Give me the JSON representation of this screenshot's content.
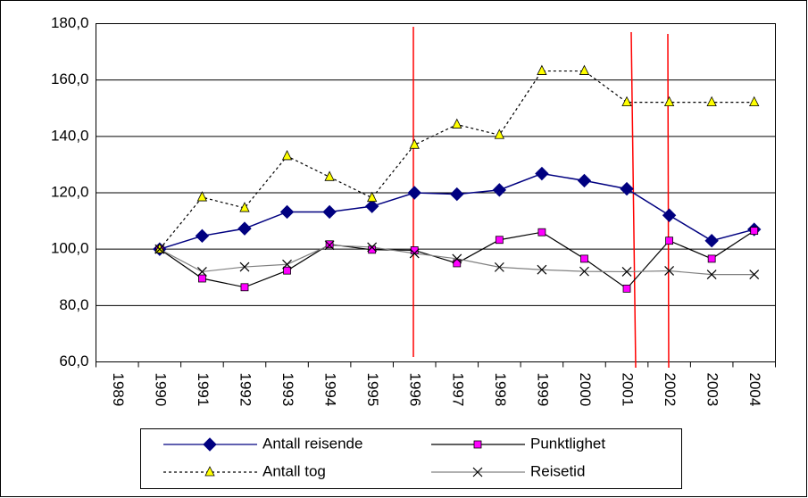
{
  "chart_data": {
    "type": "line",
    "categories": [
      "1989",
      "1990",
      "1991",
      "1992",
      "1993",
      "1994",
      "1995",
      "1996",
      "1997",
      "1998",
      "1999",
      "2000",
      "2001",
      "2002",
      "2003",
      "2004"
    ],
    "series": [
      {
        "name": "Antall reisende",
        "color": "#000080",
        "marker": "diamond",
        "line_style": "solid",
        "values": [
          null,
          100,
          104.7,
          107.3,
          113.2,
          113.2,
          115.2,
          120,
          119.5,
          121,
          126.8,
          124.3,
          121.4,
          112,
          103,
          107
        ]
      },
      {
        "name": "Punktlighet",
        "color": "#000000",
        "marker_color": "#ff00ff",
        "marker": "square",
        "line_style": "solid",
        "values": [
          null,
          100,
          89.6,
          86.5,
          92.4,
          101.7,
          99.8,
          99.6,
          95,
          103.3,
          106,
          96.6,
          86,
          103,
          96.6,
          106.5
        ]
      },
      {
        "name": "Antall tog",
        "color": "#000000",
        "marker_color": "#ffff00",
        "marker": "triangle",
        "line_style": "dotted",
        "values": [
          null,
          100,
          118.4,
          114.6,
          133,
          125.6,
          118.2,
          137,
          144.2,
          140.5,
          163.2,
          163.2,
          152.1,
          152.1,
          152.1,
          152.1
        ]
      },
      {
        "name": "Reisetid",
        "color": "#808080",
        "marker_color": "#000000",
        "marker": "x",
        "line_style": "solid",
        "values": [
          null,
          100,
          92,
          93.7,
          94.6,
          101.4,
          100.7,
          98.5,
          96.6,
          93.6,
          92.7,
          92.1,
          92,
          92.3,
          91,
          91
        ]
      }
    ],
    "ylim": [
      60,
      180
    ],
    "yticks": [
      {
        "value": 60,
        "label": "60,0"
      },
      {
        "value": 80,
        "label": "80,0"
      },
      {
        "value": 100,
        "label": "100,0"
      },
      {
        "value": 120,
        "label": "120,0"
      },
      {
        "value": 140,
        "label": "140,0"
      },
      {
        "value": 160,
        "label": "160,0"
      },
      {
        "value": 180,
        "label": "180,0"
      }
    ],
    "grid": true,
    "legend": "bottom"
  }
}
